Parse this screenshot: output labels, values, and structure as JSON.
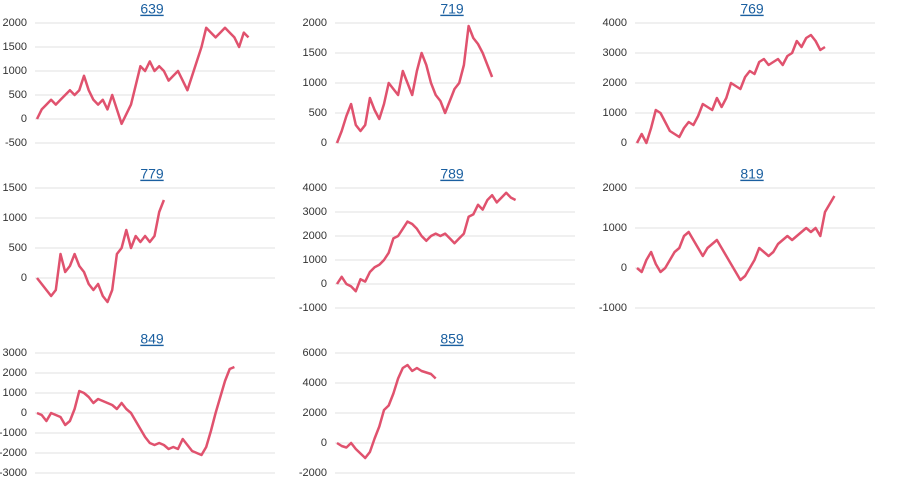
{
  "chart_data": [
    {
      "type": "line",
      "title": "639",
      "color": "#e0526e",
      "grid": true,
      "ylim": [
        -500,
        2000
      ],
      "yticks": [
        -500,
        0,
        500,
        1000,
        1500,
        2000
      ],
      "values": [
        0,
        200,
        300,
        400,
        300,
        400,
        500,
        600,
        500,
        600,
        900,
        600,
        400,
        300,
        400,
        200,
        500,
        200,
        -100,
        100,
        300,
        700,
        1100,
        1000,
        1200,
        1000,
        1100,
        1000,
        800,
        900,
        1000,
        800,
        600,
        900,
        1200,
        1500,
        1900,
        1800,
        1700,
        1800,
        1900,
        1800,
        1700,
        1500,
        1800,
        1700
      ]
    },
    {
      "type": "line",
      "title": "719",
      "color": "#e0526e",
      "grid": true,
      "ylim": [
        0,
        2000
      ],
      "yticks": [
        0,
        500,
        1000,
        1500,
        2000
      ],
      "values": [
        0,
        200,
        450,
        650,
        300,
        200,
        300,
        750,
        550,
        400,
        650,
        1000,
        900,
        800,
        1200,
        1000,
        800,
        1200,
        1500,
        1300,
        1000,
        800,
        700,
        500,
        700,
        900,
        1000,
        1300,
        1950,
        1750,
        1650,
        1500,
        1300,
        1100
      ]
    },
    {
      "type": "line",
      "title": "769",
      "color": "#e0526e",
      "grid": true,
      "ylim": [
        0,
        4000
      ],
      "yticks": [
        0,
        1000,
        2000,
        3000,
        4000
      ],
      "values": [
        0,
        300,
        0,
        500,
        1100,
        1000,
        700,
        400,
        300,
        200,
        500,
        700,
        600,
        900,
        1300,
        1200,
        1100,
        1500,
        1200,
        1500,
        2000,
        1900,
        1800,
        2200,
        2400,
        2300,
        2700,
        2800,
        2600,
        2700,
        2800,
        2600,
        2900,
        3000,
        3400,
        3200,
        3500,
        3600,
        3400,
        3100,
        3200
      ]
    },
    {
      "type": "line",
      "title": "779",
      "color": "#e0526e",
      "grid": true,
      "ylim": [
        -500,
        1500
      ],
      "yticks": [
        0,
        500,
        1000,
        1500
      ],
      "values": [
        0,
        -100,
        -200,
        -300,
        -200,
        400,
        100,
        200,
        400,
        200,
        100,
        -100,
        -200,
        -100,
        -300,
        -400,
        -200,
        400,
        500,
        800,
        500,
        700,
        600,
        700,
        600,
        700,
        1100,
        1300
      ]
    },
    {
      "type": "line",
      "title": "789",
      "color": "#e0526e",
      "grid": true,
      "ylim": [
        -1000,
        4000
      ],
      "yticks": [
        -1000,
        0,
        1000,
        2000,
        3000,
        4000
      ],
      "values": [
        0,
        300,
        0,
        -100,
        -300,
        200,
        100,
        500,
        700,
        800,
        1000,
        1300,
        1900,
        2000,
        2300,
        2600,
        2500,
        2300,
        2000,
        1800,
        2000,
        2100,
        2000,
        2100,
        1900,
        1700,
        1900,
        2100,
        2800,
        2900,
        3300,
        3100,
        3500,
        3700,
        3400,
        3600,
        3800,
        3600,
        3500
      ]
    },
    {
      "type": "line",
      "title": "819",
      "color": "#e0526e",
      "grid": true,
      "ylim": [
        -1000,
        2000
      ],
      "yticks": [
        -1000,
        0,
        1000,
        2000
      ],
      "values": [
        0,
        -100,
        200,
        400,
        100,
        -100,
        0,
        200,
        400,
        500,
        800,
        900,
        700,
        500,
        300,
        500,
        600,
        700,
        500,
        300,
        100,
        -100,
        -300,
        -200,
        0,
        200,
        500,
        400,
        300,
        400,
        600,
        700,
        800,
        700,
        800,
        900,
        1000,
        900,
        1000,
        800,
        1400,
        1600,
        1800
      ]
    },
    {
      "type": "line",
      "title": "849",
      "color": "#e0526e",
      "grid": true,
      "ylim": [
        -3000,
        3000
      ],
      "yticks": [
        -3000,
        -2000,
        -1000,
        0,
        1000,
        2000,
        3000
      ],
      "values": [
        0,
        -100,
        -400,
        0,
        -100,
        -200,
        -600,
        -400,
        200,
        1100,
        1000,
        800,
        500,
        700,
        600,
        500,
        400,
        200,
        500,
        200,
        0,
        -400,
        -800,
        -1200,
        -1500,
        -1600,
        -1500,
        -1600,
        -1800,
        -1700,
        -1800,
        -1300,
        -1600,
        -1900,
        -2000,
        -2100,
        -1700,
        -900,
        0,
        800,
        1600,
        2200,
        2300
      ]
    },
    {
      "type": "line",
      "title": "859",
      "color": "#e0526e",
      "grid": true,
      "ylim": [
        -2000,
        6000
      ],
      "yticks": [
        -2000,
        0,
        2000,
        4000,
        6000
      ],
      "values": [
        0,
        -200,
        -300,
        0,
        -400,
        -700,
        -1000,
        -600,
        300,
        1100,
        2200,
        2500,
        3300,
        4300,
        5000,
        5200,
        4800,
        5000,
        4800,
        4700,
        4600,
        4300
      ]
    }
  ]
}
